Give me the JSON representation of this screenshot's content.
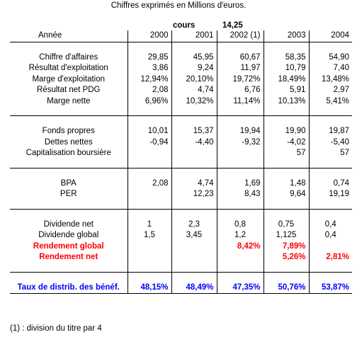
{
  "caption": "Chiffres exprimés en Millions d'euros.",
  "cours_label": "cours",
  "cours_value": "14,25",
  "headers": {
    "label": "Année",
    "y2000": "2000",
    "y2001": "2001",
    "y2002": "2002 (1)",
    "y2003": "2003",
    "y2004": "2004"
  },
  "rows": {
    "ca": {
      "label": "Chiffre d'affaires",
      "v": [
        "29,85",
        "45,95",
        "60,67",
        "58,35",
        "54,90"
      ]
    },
    "rexp": {
      "label": "Résultat d'exploitation",
      "v": [
        "3,86",
        "9,24",
        "11,97",
        "10,79",
        "7,40"
      ]
    },
    "mexp": {
      "label": "Marge d'exploitation",
      "v": [
        "12,94%",
        "20,10%",
        "19,72%",
        "18,49%",
        "13,48%"
      ]
    },
    "rnet": {
      "label": "Résultat net PDG",
      "v": [
        "2,08",
        "4,74",
        "6,76",
        "5,91",
        "2,97"
      ]
    },
    "mnet": {
      "label": "Marge nette",
      "v": [
        "6,96%",
        "10,32%",
        "11,14%",
        "10,13%",
        "5,41%"
      ]
    },
    "fp": {
      "label": "Fonds propres",
      "v": [
        "10,01",
        "15,37",
        "19,94",
        "19,90",
        "19,87"
      ]
    },
    "dn": {
      "label": "Dettes nettes",
      "v": [
        "-0,94",
        "-4,40",
        "-9,32",
        "-4,02",
        "-5,40"
      ]
    },
    "cap": {
      "label": "Capitalisation boursière",
      "v": [
        "",
        "",
        "",
        "57",
        "57"
      ]
    },
    "bpa": {
      "label": "BPA",
      "v": [
        "2,08",
        "4,74",
        "1,69",
        "1,48",
        "0,74"
      ]
    },
    "per": {
      "label": "PER",
      "v": [
        "",
        "12,23",
        "8,43",
        "9,64",
        "19,19"
      ]
    },
    "divnet": {
      "label": "Dividende net",
      "v": [
        "1",
        "2,3",
        "0,8",
        "0,75",
        "0,4"
      ]
    },
    "divglob": {
      "label": "Dividende global",
      "v": [
        "1,5",
        "3,45",
        "1,2",
        "1,125",
        "0,4"
      ]
    },
    "rglob": {
      "label": "Rendement global",
      "v": [
        "",
        "",
        "8,42%",
        "7,89%",
        ""
      ]
    },
    "rnetto": {
      "label": "Rendement net",
      "v": [
        "",
        "",
        "",
        "5,26%",
        "2,81%"
      ]
    },
    "taux": {
      "label": "Taux de distrib. des bénéf.",
      "v": [
        "48,15%",
        "48,49%",
        "47,35%",
        "50,76%",
        "53,87%"
      ]
    }
  },
  "footnote": "(1) : division du titre par 4",
  "colors": {
    "highlight_red": "#ff0000",
    "highlight_blue": "#0000ff"
  }
}
